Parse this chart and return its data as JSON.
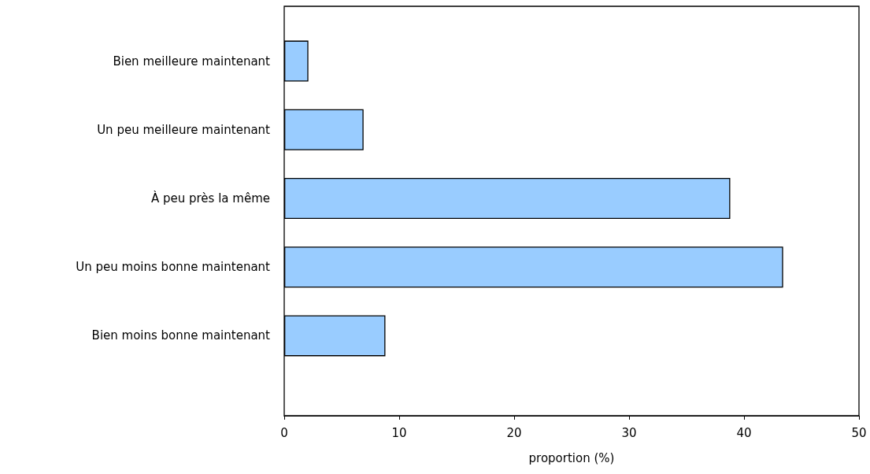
{
  "chart_data": {
    "type": "bar",
    "orientation": "horizontal",
    "xlabel": "proportion (%)",
    "categories": [
      "Bien meilleure maintenant",
      "Un peu meilleure maintenant",
      "À peu près la même",
      "Un peu moins bonne maintenant",
      "Bien moins bonne maintenant"
    ],
    "values": [
      2.1,
      6.9,
      38.8,
      43.4,
      8.8
    ],
    "color": "#99ccff",
    "xlim": [
      0,
      50
    ],
    "xticks": [
      0,
      10,
      20,
      30,
      40,
      50
    ],
    "grid": false
  }
}
